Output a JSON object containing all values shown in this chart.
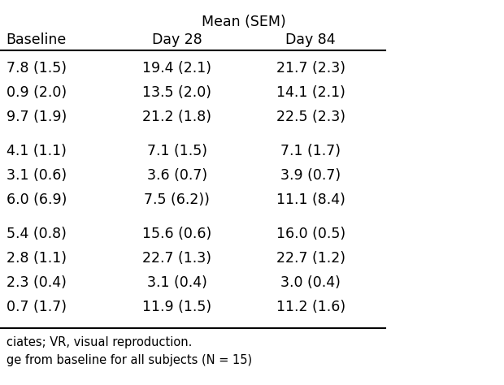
{
  "title": "Mean (SEM)",
  "col_headers": [
    "Baseline",
    "Day 28",
    "Day 84"
  ],
  "rows": [
    [
      "7.8 (1.5)",
      "19.4 (2.1)",
      "21.7 (2.3)"
    ],
    [
      "0.9 (2.0)",
      "13.5 (2.0)",
      "14.1 (2.1)"
    ],
    [
      "9.7 (1.9)",
      "21.2 (1.8)",
      "22.5 (2.3)"
    ],
    [
      "",
      "",
      ""
    ],
    [
      "4.1 (1.1)",
      "7.1 (1.5)",
      "7.1 (1.7)"
    ],
    [
      "3.1 (0.6)",
      "3.6 (0.7)",
      "3.9 (0.7)"
    ],
    [
      "6.0 (6.9)",
      "7.5 (6.2))",
      "11.1 (8.4)"
    ],
    [
      "",
      "",
      ""
    ],
    [
      "5.4 (0.8)",
      "15.6 (0.6)",
      "16.0 (0.5)"
    ],
    [
      "2.8 (1.1)",
      "22.7 (1.3)",
      "22.7 (1.2)"
    ],
    [
      "2.3 (0.4)",
      "3.1 (0.4)",
      "3.0 (0.4)"
    ],
    [
      "0.7 (1.7)",
      "11.9 (1.5)",
      "11.2 (1.6)"
    ]
  ],
  "footnotes": [
    "ciates; VR, visual reproduction.",
    "ge from baseline for all subjects (N = 15)"
  ],
  "bg_color": "#ffffff",
  "text_color": "#000000",
  "font_size": 12.5,
  "header_font_size": 12.5,
  "footnote_font_size": 10.5
}
